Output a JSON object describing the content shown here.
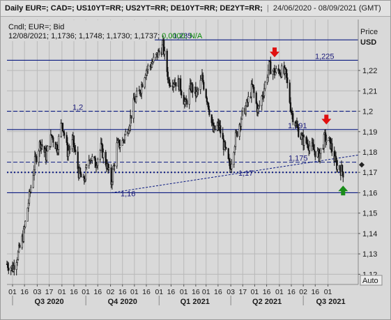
{
  "title_bar": {
    "instruments": "Daily EUR=; CAD=; US10YT=RR; US2YT=RR; DE10YT=RR; DE2YT=RR;",
    "date_range": "24/06/2020 - 08/09/2021 (GMT)"
  },
  "info_box": {
    "line1_prefix": "Cndl; EUR=; Bid",
    "line2_values": "12/08/2021; 1,1736; 1,1748; 1,1730; 1,1737;",
    "line2_change": "0,0000; N/A"
  },
  "colors": {
    "background": "#d9d9d9",
    "candle": "#111111",
    "level_line": "#0b1a80",
    "up_arrow": "#1a8c1a",
    "down_arrow": "#e01010",
    "change_text": "#0a8a0a"
  },
  "axis": {
    "price_label_line1": "Price",
    "price_label_line2": "USD",
    "auto_button": "Auto"
  },
  "chart_data": {
    "type": "candlestick",
    "series_name": "EUR= Bid",
    "x_range": [
      "2020-06-24",
      "2021-09-08"
    ],
    "ylim": [
      1.115,
      1.245
    ],
    "y_ticks": [
      "1,12",
      "1,13",
      "1,14",
      "1,15",
      "1,16",
      "1,17",
      "1,18",
      "1,19",
      "1,2",
      "1,21",
      "1,22"
    ],
    "month_tick_labels": [
      "01",
      "16",
      "03",
      "17",
      "01",
      "16",
      "01",
      "16",
      "02",
      "16",
      "01",
      "16",
      "01",
      "16",
      "01",
      "16",
      "01",
      "16",
      "03",
      "17",
      "01",
      "16",
      "01",
      "16",
      "02",
      "16",
      "01"
    ],
    "quarter_labels": [
      "Q3 2020",
      "Q4 2020",
      "Q1 2021",
      "Q2 2021",
      "Q3 2021"
    ],
    "close_path": [
      [
        "2020-06-24",
        1.125
      ],
      [
        "2020-07-01",
        1.123
      ],
      [
        "2020-07-08",
        1.13
      ],
      [
        "2020-07-15",
        1.14
      ],
      [
        "2020-07-22",
        1.158
      ],
      [
        "2020-07-29",
        1.175
      ],
      [
        "2020-08-05",
        1.185
      ],
      [
        "2020-08-12",
        1.178
      ],
      [
        "2020-08-19",
        1.188
      ],
      [
        "2020-08-26",
        1.182
      ],
      [
        "2020-09-01",
        1.195
      ],
      [
        "2020-09-08",
        1.18
      ],
      [
        "2020-09-15",
        1.185
      ],
      [
        "2020-09-22",
        1.17
      ],
      [
        "2020-09-28",
        1.165
      ],
      [
        "2020-10-06",
        1.178
      ],
      [
        "2020-10-13",
        1.174
      ],
      [
        "2020-10-20",
        1.182
      ],
      [
        "2020-10-27",
        1.174
      ],
      [
        "2020-11-02",
        1.165
      ],
      [
        "2020-11-09",
        1.183
      ],
      [
        "2020-11-16",
        1.185
      ],
      [
        "2020-11-23",
        1.192
      ],
      [
        "2020-12-01",
        1.205
      ],
      [
        "2020-12-08",
        1.21
      ],
      [
        "2020-12-15",
        1.22
      ],
      [
        "2020-12-22",
        1.223
      ],
      [
        "2021-01-06",
        1.232
      ],
      [
        "2021-01-13",
        1.215
      ],
      [
        "2021-01-20",
        1.215
      ],
      [
        "2021-01-27",
        1.213
      ],
      [
        "2021-02-03",
        1.203
      ],
      [
        "2021-02-10",
        1.212
      ],
      [
        "2021-02-17",
        1.208
      ],
      [
        "2021-02-24",
        1.216
      ],
      [
        "2021-03-03",
        1.205
      ],
      [
        "2021-03-10",
        1.19
      ],
      [
        "2021-03-17",
        1.193
      ],
      [
        "2021-03-24",
        1.182
      ],
      [
        "2021-03-31",
        1.172
      ],
      [
        "2021-04-07",
        1.187
      ],
      [
        "2021-04-14",
        1.197
      ],
      [
        "2021-04-21",
        1.203
      ],
      [
        "2021-04-28",
        1.212
      ],
      [
        "2021-05-05",
        1.2
      ],
      [
        "2021-05-12",
        1.21
      ],
      [
        "2021-05-19",
        1.222
      ],
      [
        "2021-05-26",
        1.219
      ],
      [
        "2021-06-02",
        1.22
      ],
      [
        "2021-06-09",
        1.218
      ],
      [
        "2021-06-16",
        1.2
      ],
      [
        "2021-06-23",
        1.192
      ],
      [
        "2021-06-30",
        1.186
      ],
      [
        "2021-07-07",
        1.184
      ],
      [
        "2021-07-14",
        1.181
      ],
      [
        "2021-07-21",
        1.178
      ],
      [
        "2021-07-28",
        1.187
      ],
      [
        "2021-08-04",
        1.184
      ],
      [
        "2021-08-11",
        1.174
      ],
      [
        "2021-08-18",
        1.171
      ],
      [
        "2021-08-20",
        1.17
      ]
    ],
    "levels": [
      {
        "value": 1.235,
        "label": "1,235",
        "style": "solid"
      },
      {
        "value": 1.225,
        "label": "1,225",
        "style": "solid"
      },
      {
        "value": 1.2,
        "label": "1,2",
        "style": "dashed"
      },
      {
        "value": 1.191,
        "label": "1,191",
        "style": "solid"
      },
      {
        "value": 1.175,
        "label": "1,175",
        "style": "dashed"
      },
      {
        "value": 1.17,
        "label": "1,17",
        "style": "dotted"
      },
      {
        "value": 1.16,
        "label": "1,16",
        "style": "solid"
      }
    ],
    "trendline": {
      "from": [
        "2020-11-02",
        1.16
      ],
      "to": [
        "2021-09-08",
        1.1785
      ]
    },
    "markers": [
      {
        "type": "down-arrow",
        "date": "2021-05-26",
        "price": 1.2265
      },
      {
        "type": "down-arrow",
        "date": "2021-07-30",
        "price": 1.1935
      },
      {
        "type": "up-arrow",
        "date": "2021-08-20",
        "price": 1.1635
      }
    ],
    "last_price_marker": 1.1737
  }
}
